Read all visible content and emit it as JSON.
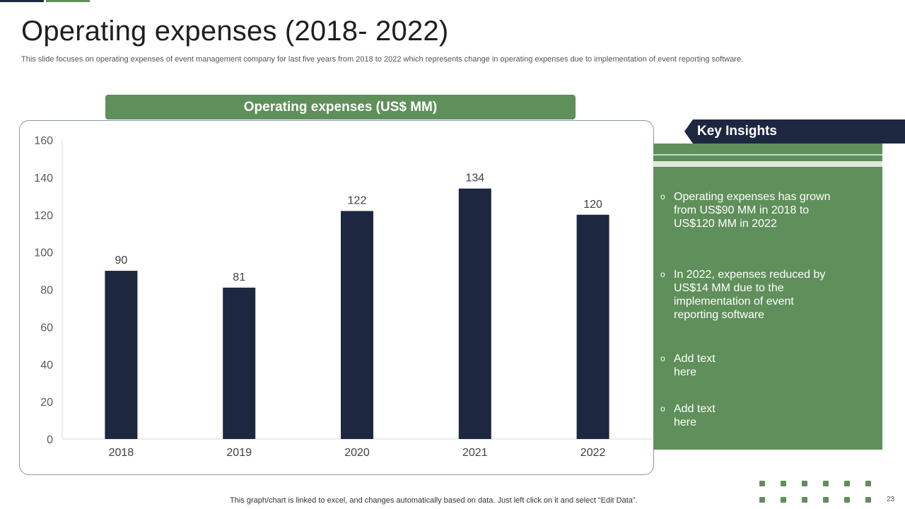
{
  "slide": {
    "title": "Operating expenses (2018- 2022)",
    "subtitle": "This slide focuses on operating expenses of event management company for last five years from 2018 to 2022 which represents change in operating expenses due to implementation of event reporting software.",
    "footer_note": "This graph/chart is linked to excel, and changes automatically based on data. Just left click on it and select “Edit Data”.",
    "page_number": "23"
  },
  "chart_banner": "Operating expenses (US$ MM)",
  "insights": {
    "header": "Key Insights",
    "items": [
      "Operating expenses has grown from US$90 MM in 2018 to US$120 MM in 2022",
      "In 2022, expenses reduced by US$14 MM due to the implementation of event reporting software",
      "Add text here",
      "Add text here"
    ],
    "bullet_glyph": "o"
  },
  "chart_data": {
    "type": "bar",
    "title": "Operating expenses (US$ MM)",
    "categories": [
      "2018",
      "2019",
      "2020",
      "2021",
      "2022"
    ],
    "values": [
      90,
      81,
      122,
      134,
      120
    ],
    "ylim": [
      0,
      160
    ],
    "yticks": [
      0,
      20,
      40,
      60,
      80,
      100,
      120,
      140,
      160
    ],
    "xlabel": "",
    "ylabel": "",
    "grid": false,
    "bar_color": "#1d2740"
  },
  "colors": {
    "accent_green": "#5f8f5a",
    "navy": "#1d2740"
  }
}
